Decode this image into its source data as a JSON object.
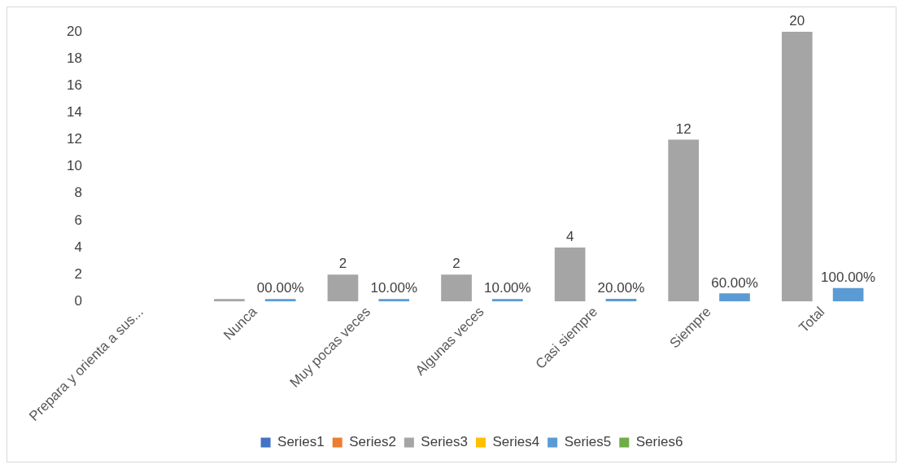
{
  "chart_data": {
    "type": "bar",
    "categories": [
      "Prepara y orienta a sus...",
      "Nunca",
      "Muy pocas veces",
      "Algunas veces",
      "Casi siempre",
      "Siempre",
      "Total"
    ],
    "series": [
      {
        "name": "Series1",
        "color": "#4472c4",
        "values": [
          null,
          null,
          null,
          null,
          null,
          null,
          null
        ]
      },
      {
        "name": "Series2",
        "color": "#ed7d31",
        "values": [
          null,
          null,
          null,
          null,
          null,
          null,
          null
        ]
      },
      {
        "name": "Series3",
        "color": "#a5a5a5",
        "values": [
          null,
          0,
          2,
          2,
          4,
          12,
          20
        ],
        "value_labels": [
          null,
          null,
          "2",
          "2",
          "4",
          "12",
          "20"
        ]
      },
      {
        "name": "Series4",
        "color": "#ffc000",
        "values": [
          null,
          null,
          null,
          null,
          null,
          null,
          null
        ]
      },
      {
        "name": "Series5",
        "color": "#5b9bd5",
        "values": [
          null,
          0,
          0.1,
          0.1,
          0.2,
          0.6,
          1
        ],
        "value_labels": [
          null,
          "00.00%",
          "10.00%",
          "10.00%",
          "20.00%",
          "60.00%",
          "100.00%"
        ]
      },
      {
        "name": "Series6",
        "color": "#70ad47",
        "values": [
          null,
          null,
          null,
          null,
          null,
          null,
          null
        ]
      }
    ],
    "ylim": [
      0,
      20
    ],
    "yticks": [
      0,
      2,
      4,
      6,
      8,
      10,
      12,
      14,
      16,
      18,
      20
    ],
    "grid": false,
    "legend": "bottom"
  }
}
